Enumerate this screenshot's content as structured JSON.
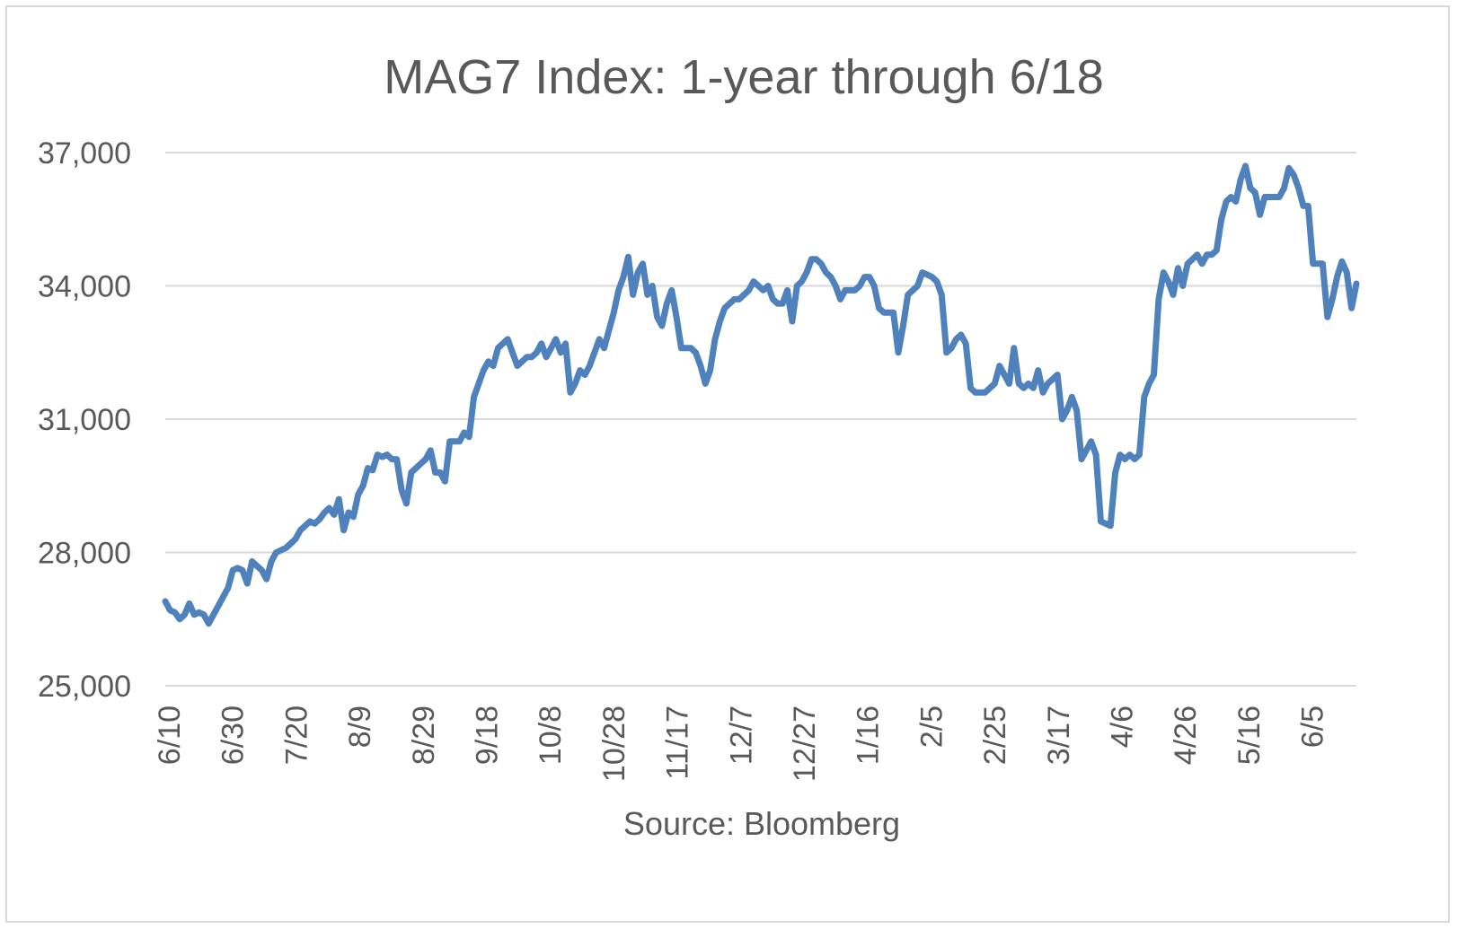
{
  "chart_data": {
    "type": "line",
    "title": "MAG7 Index: 1-year through 6/18",
    "xlabel": "Source: Bloomberg",
    "ylabel": "",
    "ylim": [
      25000,
      37000
    ],
    "yticks": [
      25000,
      28000,
      31000,
      34000,
      37000
    ],
    "ytick_labels": [
      "25,000",
      "28,000",
      "31,000",
      "34,000",
      "37,000"
    ],
    "xticks": [
      "6/10",
      "6/30",
      "7/20",
      "8/9",
      "8/29",
      "9/18",
      "10/8",
      "10/28",
      "11/17",
      "12/7",
      "12/27",
      "1/16",
      "2/5",
      "2/25",
      "3/17",
      "4/6",
      "4/26",
      "5/16",
      "6/5"
    ],
    "grid": "horizontal",
    "legend": "none",
    "color": "#4f81bd",
    "x_start": "6/10",
    "x_end": "6/18",
    "series": [
      {
        "values": [
          26900,
          26700,
          26650,
          26500,
          26600,
          26850,
          26600,
          26650,
          26600,
          26400,
          26600,
          26800,
          27000,
          27200,
          27600,
          27650,
          27600,
          27300,
          27800,
          27700,
          27600,
          27400,
          27800,
          28000,
          28050,
          28100,
          28200,
          28300,
          28500,
          28600,
          28700,
          28650,
          28750,
          28900,
          29000,
          28850,
          29200,
          28500,
          28900,
          28800,
          29300,
          29500,
          29900,
          29850,
          30200,
          30150,
          30200,
          30100,
          30100,
          29400,
          29100,
          29800,
          29900,
          30000,
          30100,
          30300,
          29800,
          29800,
          29600,
          30500,
          30500,
          30500,
          30700,
          30600,
          31500,
          31800,
          32100,
          32300,
          32200,
          32600,
          32700,
          32800,
          32500,
          32200,
          32300,
          32400,
          32400,
          32500,
          32700,
          32400,
          32600,
          32800,
          32500,
          32700,
          31600,
          31800,
          32100,
          32000,
          32200,
          32500,
          32800,
          32600,
          33000,
          33400,
          33900,
          34200,
          34650,
          33800,
          34300,
          34500,
          33800,
          34000,
          33300,
          33100,
          33600,
          33900,
          33300,
          32600,
          32600,
          32600,
          32500,
          32200,
          31800,
          32100,
          32800,
          33200,
          33500,
          33600,
          33700,
          33700,
          33800,
          33900,
          34100,
          34000,
          33900,
          34000,
          33700,
          33600,
          33600,
          33900,
          33200,
          34000,
          34100,
          34300,
          34600,
          34600,
          34500,
          34300,
          34200,
          34000,
          33700,
          33900,
          33900,
          33900,
          34000,
          34200,
          34200,
          34000,
          33500,
          33400,
          33400,
          33400,
          32500,
          33100,
          33800,
          33900,
          34000,
          34300,
          34250,
          34200,
          34100,
          33800,
          32500,
          32600,
          32800,
          32900,
          32700,
          31700,
          31600,
          31600,
          31600,
          31700,
          31800,
          32200,
          32000,
          31800,
          32600,
          31800,
          31700,
          31800,
          31700,
          32100,
          31600,
          31800,
          31900,
          32000,
          31000,
          31200,
          31500,
          31200,
          30100,
          30300,
          30500,
          30200,
          28700,
          28650,
          28600,
          29800,
          30200,
          30100,
          30200,
          30100,
          30200,
          31500,
          31800,
          32000,
          33700,
          34300,
          34100,
          33800,
          34400,
          34000,
          34500,
          34600,
          34700,
          34500,
          34700,
          34700,
          34800,
          35500,
          35900,
          36000,
          35900,
          36400,
          36700,
          36200,
          36100,
          35600,
          36000,
          36000,
          36000,
          36000,
          36200,
          36650,
          36500,
          36200,
          35800,
          35800,
          34500,
          34500,
          34500,
          33300,
          33700,
          34200,
          34550,
          34300,
          33500,
          34050
        ]
      }
    ]
  }
}
